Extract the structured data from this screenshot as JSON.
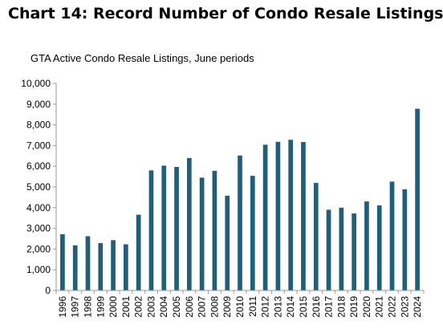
{
  "chart_data": {
    "type": "bar",
    "title": "Chart 14: Record Number of Condo Resale Listings",
    "subtitle": "GTA Active  Condo Resale Listings, June periods",
    "xlabel": "",
    "ylabel": "",
    "categories": [
      "1996",
      "1997",
      "1998",
      "1999",
      "2000",
      "2001",
      "2002",
      "2003",
      "2004",
      "2005",
      "2006",
      "2007",
      "2008",
      "2009",
      "2010",
      "2011",
      "2012",
      "2013",
      "2014",
      "2015",
      "2016",
      "2017",
      "2018",
      "2019",
      "2020",
      "2021",
      "2022",
      "2023",
      "2024"
    ],
    "series": [
      {
        "values": [
          2720,
          2180,
          2620,
          2290,
          2430,
          2230,
          3660,
          5800,
          6030,
          5970,
          6400,
          5450,
          5780,
          4580,
          6520,
          5540,
          7040,
          7180,
          7280,
          7170,
          5200,
          3900,
          4000,
          3720,
          4300,
          4110,
          5260,
          4890,
          8780
        ]
      }
    ],
    "ylim": [
      0,
      10000
    ],
    "yticks": [
      0,
      1000,
      2000,
      3000,
      4000,
      5000,
      6000,
      7000,
      8000,
      9000,
      10000
    ],
    "ytick_labels": [
      "0",
      "1,000",
      "2,000",
      "3,000",
      "4,000",
      "5,000",
      "6,000",
      "7,000",
      "8,000",
      "9,000",
      "10,000"
    ],
    "grid": false,
    "legend": "none",
    "bar_color": "#1f5f7a",
    "axis_color": "#999999"
  }
}
